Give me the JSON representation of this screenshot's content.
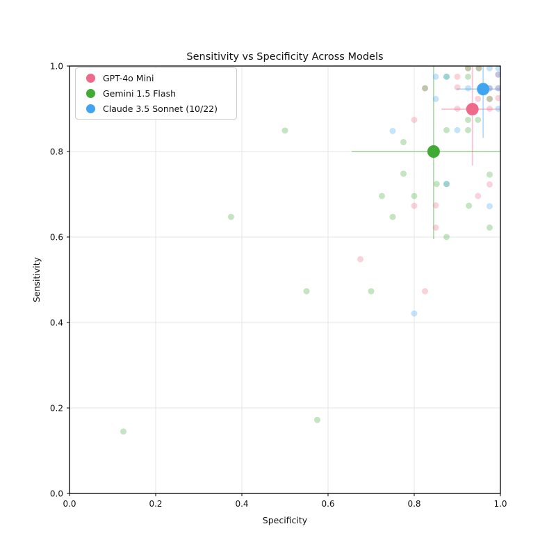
{
  "figure": {
    "title": "Sensitivity vs Specificity Across Models",
    "xlabel": "Specificity",
    "ylabel": "Sensitivity",
    "x_tick_labels": [
      "0.0",
      "0.2",
      "0.4",
      "0.6",
      "0.8",
      "1.0"
    ],
    "y_tick_labels": [
      "0.0",
      "0.2",
      "0.4",
      "0.6",
      "0.8",
      "1.0"
    ],
    "grid_color": "#e6e6e6",
    "border_color": "#000000",
    "background": "#ffffff"
  },
  "chart_data": {
    "type": "scatter",
    "title": "Sensitivity vs Specificity Across Models",
    "xlabel": "Specificity",
    "ylabel": "Sensitivity",
    "xlim": [
      0.0,
      1.0
    ],
    "ylim": [
      0.0,
      1.0
    ],
    "x_ticks": [
      0.0,
      0.2,
      0.4,
      0.6,
      0.8,
      1.0
    ],
    "y_ticks": [
      0.0,
      0.2,
      0.4,
      0.6,
      0.8,
      1.0
    ],
    "grid": true,
    "legend_position": "upper left",
    "series": [
      {
        "name": "GPT-4o Mini",
        "color": "#ef6a8a",
        "main_point": {
          "x": 0.935,
          "y": 0.899,
          "xerr": 0.072,
          "yerr": 0.132
        },
        "points": [
          [
            0.675,
            0.548
          ],
          [
            0.8,
            0.874
          ],
          [
            0.8,
            0.673
          ],
          [
            0.825,
            0.473
          ],
          [
            0.825,
            0.948
          ],
          [
            0.85,
            0.674
          ],
          [
            0.85,
            0.622
          ],
          [
            0.9,
            0.975
          ],
          [
            0.9,
            0.95
          ],
          [
            0.9,
            0.9
          ],
          [
            0.925,
            0.995
          ],
          [
            0.95,
            0.995
          ],
          [
            0.948,
            0.923
          ],
          [
            0.948,
            0.696
          ],
          [
            0.975,
            0.948
          ],
          [
            0.975,
            0.923
          ],
          [
            0.975,
            0.9
          ],
          [
            0.975,
            0.723
          ],
          [
            0.995,
            0.98
          ],
          [
            0.995,
            0.948
          ],
          [
            0.995,
            0.925
          ]
        ]
      },
      {
        "name": "Gemini 1.5 Flash",
        "color": "#3faa34",
        "main_point": {
          "x": 0.845,
          "y": 0.8,
          "xerr": 0.19,
          "yerr": 0.205
        },
        "points": [
          [
            0.125,
            0.145
          ],
          [
            0.375,
            0.647
          ],
          [
            0.5,
            0.849
          ],
          [
            0.55,
            0.473
          ],
          [
            0.575,
            0.172
          ],
          [
            0.7,
            0.473
          ],
          [
            0.725,
            0.696
          ],
          [
            0.75,
            0.647
          ],
          [
            0.775,
            0.822
          ],
          [
            0.775,
            0.748
          ],
          [
            0.8,
            0.696
          ],
          [
            0.825,
            0.948
          ],
          [
            0.852,
            0.724
          ],
          [
            0.875,
            0.975
          ],
          [
            0.875,
            0.85
          ],
          [
            0.875,
            0.724
          ],
          [
            0.875,
            0.6
          ],
          [
            0.925,
            0.995
          ],
          [
            0.925,
            0.975
          ],
          [
            0.925,
            0.85
          ],
          [
            0.925,
            0.874
          ],
          [
            0.948,
            0.874
          ],
          [
            0.927,
            0.673
          ],
          [
            0.95,
            0.995
          ],
          [
            0.975,
            0.923
          ],
          [
            0.975,
            0.746
          ],
          [
            0.975,
            0.622
          ]
        ]
      },
      {
        "name": "Claude 3.5 Sonnet (10/22)",
        "color": "#40a4f1",
        "main_point": {
          "x": 0.96,
          "y": 0.946,
          "xerr": 0.062,
          "yerr": 0.114
        },
        "points": [
          [
            0.75,
            0.848
          ],
          [
            0.8,
            0.421
          ],
          [
            0.85,
            0.975
          ],
          [
            0.85,
            0.923
          ],
          [
            0.875,
            0.975
          ],
          [
            0.875,
            0.724
          ],
          [
            0.9,
            0.85
          ],
          [
            0.925,
            0.948
          ],
          [
            0.975,
            0.995
          ],
          [
            0.975,
            0.948
          ],
          [
            0.975,
            0.672
          ],
          [
            0.995,
            0.995
          ],
          [
            0.995,
            0.98
          ],
          [
            0.995,
            0.948
          ],
          [
            0.995,
            0.9
          ]
        ]
      }
    ],
    "style": {
      "small_point_opacity": 0.3,
      "small_point_radius": 4.5,
      "main_point_radius": 9,
      "errorbar_opacity": 0.4,
      "errorbar_width": 1.8
    }
  }
}
